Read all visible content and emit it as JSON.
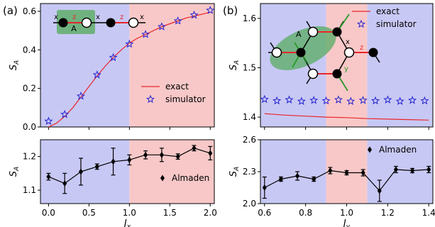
{
  "figure": {
    "panel_a_label": "(a)",
    "panel_b_label": "(b)"
  },
  "chart_data": [
    {
      "id": "a_top",
      "type": "line",
      "ylabel": "S",
      "ylabel_sub": "A",
      "xlim": [
        -0.1,
        2.05
      ],
      "ylim": [
        0.0,
        0.64
      ],
      "yticks": [
        0.0,
        0.2,
        0.4,
        0.6
      ],
      "ytick_labels": [
        "0.0",
        "0.2",
        "0.4",
        "0.6"
      ],
      "xticks": [
        0.0,
        0.5,
        1.0,
        1.5,
        2.0
      ],
      "regions": [
        {
          "from": -0.1,
          "to": 1.0,
          "color": "#c8c8f5"
        },
        {
          "from": 1.0,
          "to": 2.05,
          "color": "#f8c8c8"
        }
      ],
      "series": [
        {
          "name": "exact",
          "kind": "line",
          "color": "#e8262a",
          "x": [
            0.0,
            0.1,
            0.2,
            0.3,
            0.4,
            0.5,
            0.6,
            0.7,
            0.8,
            0.9,
            1.0,
            1.1,
            1.2,
            1.3,
            1.4,
            1.5,
            1.6,
            1.7,
            1.8,
            1.9,
            2.0
          ],
          "y": [
            0.0,
            0.02,
            0.055,
            0.1,
            0.155,
            0.21,
            0.265,
            0.315,
            0.36,
            0.4,
            0.435,
            0.46,
            0.48,
            0.5,
            0.52,
            0.535,
            0.55,
            0.565,
            0.575,
            0.585,
            0.595
          ]
        },
        {
          "name": "simulator",
          "kind": "marker",
          "marker": "star",
          "color": "#2323d0",
          "x": [
            0.0,
            0.2,
            0.4,
            0.6,
            0.8,
            1.0,
            1.2,
            1.4,
            1.6,
            1.8,
            2.0
          ],
          "y": [
            0.03,
            0.065,
            0.16,
            0.27,
            0.36,
            0.43,
            0.48,
            0.52,
            0.55,
            0.58,
            0.605
          ]
        }
      ],
      "legend": {
        "placement": "right",
        "entries": [
          "exact",
          "simulator"
        ]
      }
    },
    {
      "id": "a_bottom",
      "type": "line",
      "xlabel": "J",
      "xlabel_sub": "x",
      "ylabel": "S",
      "ylabel_sub": "A",
      "xlim": [
        -0.1,
        2.05
      ],
      "ylim": [
        1.06,
        1.25
      ],
      "yticks": [
        1.1,
        1.2
      ],
      "ytick_labels": [
        "1.1",
        "1.2"
      ],
      "xticks": [
        0.0,
        0.5,
        1.0,
        1.5,
        2.0
      ],
      "xtick_labels": [
        "0.0",
        "0.5",
        "1.0",
        "1.5",
        "2.0"
      ],
      "regions": [
        {
          "from": -0.1,
          "to": 1.0,
          "color": "#c8c8f5"
        },
        {
          "from": 1.0,
          "to": 2.05,
          "color": "#f8c8c8"
        }
      ],
      "series": [
        {
          "name": "Almaden",
          "kind": "errorbar",
          "marker": "diamond",
          "color": "#000000",
          "x": [
            0.0,
            0.2,
            0.4,
            0.6,
            0.8,
            1.0,
            1.2,
            1.4,
            1.6,
            1.8,
            2.0
          ],
          "y": [
            1.14,
            1.12,
            1.155,
            1.17,
            1.185,
            1.19,
            1.205,
            1.205,
            1.2,
            1.225,
            1.21
          ],
          "err": [
            0.01,
            0.03,
            0.04,
            0.008,
            0.04,
            0.015,
            0.012,
            0.02,
            0.008,
            0.008,
            0.02
          ]
        }
      ],
      "legend": {
        "placement": "right",
        "entries": [
          "Almaden"
        ]
      }
    },
    {
      "id": "b_top",
      "type": "line",
      "ylabel": "S",
      "ylabel_sub": "A",
      "xlim": [
        0.58,
        1.42
      ],
      "ylim": [
        1.38,
        1.63
      ],
      "yticks": [
        1.4,
        1.5,
        1.6
      ],
      "ytick_labels": [
        "1.4",
        "1.5",
        "1.6"
      ],
      "xticks": [
        0.6,
        0.8,
        1.0,
        1.2,
        1.4
      ],
      "regions": [
        {
          "from": 0.58,
          "to": 0.9,
          "color": "#c8c8f5"
        },
        {
          "from": 0.9,
          "to": 1.1,
          "color": "#f8c8c8"
        },
        {
          "from": 1.1,
          "to": 1.42,
          "color": "#c8c8f5"
        }
      ],
      "series": [
        {
          "name": "exact",
          "kind": "line",
          "color": "#e8262a",
          "x": [
            0.6,
            0.7,
            0.8,
            0.9,
            1.0,
            1.1,
            1.2,
            1.3,
            1.4
          ],
          "y": [
            1.407,
            1.404,
            1.402,
            1.4,
            1.399,
            1.397,
            1.396,
            1.395,
            1.394
          ]
        },
        {
          "name": "simulator",
          "kind": "marker",
          "marker": "star",
          "color": "#2323d0",
          "x": [
            0.6,
            0.66,
            0.72,
            0.78,
            0.84,
            0.9,
            0.96,
            1.02,
            1.08,
            1.14,
            1.2,
            1.26,
            1.32,
            1.38
          ],
          "y": [
            1.436,
            1.433,
            1.435,
            1.432,
            1.434,
            1.433,
            1.435,
            1.432,
            1.434,
            1.433,
            1.435,
            1.432,
            1.434,
            1.433
          ]
        }
      ],
      "legend": {
        "placement": "top-right",
        "entries": [
          "exact",
          "simulator"
        ]
      }
    },
    {
      "id": "b_bottom",
      "type": "line",
      "xlabel": "J",
      "xlabel_sub": "y",
      "ylabel": "S",
      "ylabel_sub": "A",
      "xlim": [
        0.58,
        1.42
      ],
      "ylim": [
        2.0,
        2.6
      ],
      "yticks": [
        2.0,
        2.3,
        2.6
      ],
      "ytick_labels": [
        "2.0",
        "2.3",
        "2.6"
      ],
      "xticks": [
        0.6,
        0.8,
        1.0,
        1.2,
        1.4
      ],
      "xtick_labels": [
        "0.6",
        "0.8",
        "1.0",
        "1.2",
        "1.4"
      ],
      "regions": [
        {
          "from": 0.58,
          "to": 0.9,
          "color": "#c8c8f5"
        },
        {
          "from": 0.9,
          "to": 1.1,
          "color": "#f8c8c8"
        },
        {
          "from": 1.1,
          "to": 1.42,
          "color": "#c8c8f5"
        }
      ],
      "series": [
        {
          "name": "Almaden",
          "kind": "errorbar",
          "marker": "diamond",
          "color": "#000000",
          "x": [
            0.6,
            0.68,
            0.76,
            0.84,
            0.92,
            1.0,
            1.08,
            1.16,
            1.24,
            1.32,
            1.4
          ],
          "y": [
            2.15,
            2.23,
            2.26,
            2.23,
            2.31,
            2.29,
            2.29,
            2.12,
            2.32,
            2.31,
            2.32
          ],
          "err": [
            0.1,
            0.02,
            0.04,
            0.02,
            0.03,
            0.02,
            0.03,
            0.1,
            0.03,
            0.02,
            0.03
          ]
        }
      ],
      "legend": {
        "placement": "top-right",
        "entries": [
          "Almaden"
        ]
      }
    }
  ],
  "insets": {
    "a": {
      "region_label": "A",
      "bond_labels": [
        "x",
        "z",
        "x",
        "z",
        "x"
      ]
    },
    "b": {
      "region_label": "A",
      "bond_labels": [
        "x",
        "z",
        "y"
      ]
    }
  }
}
